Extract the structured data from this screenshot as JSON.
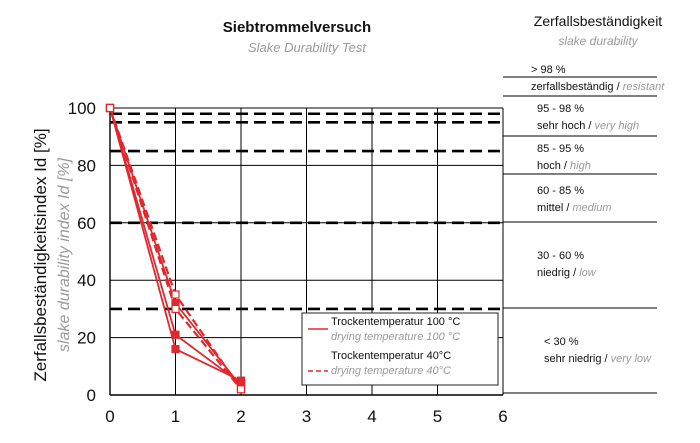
{
  "chart_data": {
    "type": "line",
    "title": "Siebtrommelversuch",
    "subtitle": "Slake Durability Test",
    "ylabel": "Zerfallsbeständigkeitsindex Id [%]",
    "ylabel_en": "slake durability index Id [%]",
    "xlabel": "",
    "xlim": [
      0,
      6
    ],
    "ylim": [
      0,
      100
    ],
    "x_ticks": [
      "0",
      "1",
      "2",
      "3",
      "4",
      "5",
      "6"
    ],
    "y_ticks": [
      "0",
      "20",
      "40",
      "60",
      "80",
      "100"
    ],
    "grid": true,
    "series_color": "#e0282e",
    "series": [
      {
        "style": "solid",
        "marker": "filled-square",
        "x": [
          0,
          1,
          2
        ],
        "y": [
          100,
          16,
          5
        ]
      },
      {
        "style": "solid",
        "marker": "filled-square",
        "x": [
          0,
          1,
          2
        ],
        "y": [
          100,
          21,
          4
        ]
      },
      {
        "style": "solid",
        "marker": "filled-square",
        "x": [
          0,
          1,
          2
        ],
        "y": [
          100,
          32,
          3
        ]
      },
      {
        "style": "dashed",
        "marker": "open-square",
        "x": [
          0,
          1,
          2
        ],
        "y": [
          100,
          30,
          2
        ]
      },
      {
        "style": "dashed",
        "marker": "open-square",
        "x": [
          0,
          1,
          2
        ],
        "y": [
          100,
          35,
          2
        ]
      }
    ],
    "thresholds": [
      98,
      95,
      85,
      60,
      30
    ],
    "legend": {
      "placement": "bottom-right",
      "entries": [
        {
          "label": "Trockentemperatur 100 °C",
          "label_en": "drying temperature 100 °C",
          "style": "solid"
        },
        {
          "label": "Trockentemperatur 40°C",
          "label_en": "drying temperature 40°C",
          "style": "dashed"
        }
      ]
    },
    "classes_heading": "Zerfallsbeständigkeit",
    "classes_heading_en": "slake durability",
    "classes": [
      {
        "range": "> 98 %",
        "label": "zerfallsbeständig",
        "label_en": "resistant"
      },
      {
        "range": "95 - 98 %",
        "label": "sehr hoch",
        "label_en": "very high"
      },
      {
        "range": "85 - 95 %",
        "label": "hoch",
        "label_en": "high"
      },
      {
        "range": "60 - 85 %",
        "label": "mittel",
        "label_en": "medium"
      },
      {
        "range": "30 - 60 %",
        "label": "niedrig",
        "label_en": "low"
      },
      {
        "range": "< 30 %",
        "label": "sehr niedrig",
        "label_en": "very low"
      }
    ],
    "slash": " / "
  }
}
